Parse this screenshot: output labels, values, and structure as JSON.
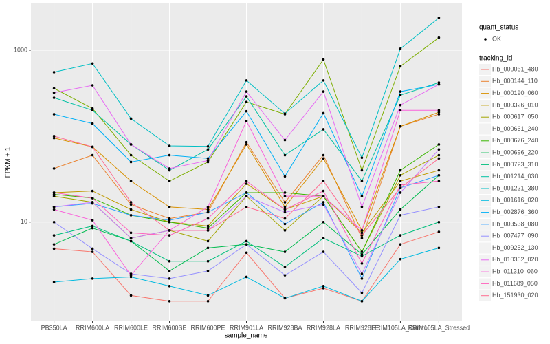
{
  "chart_data": {
    "type": "line",
    "x_label": "sample_name",
    "y_label": "FPKM + 1",
    "categories": [
      "PB350LA",
      "RRIM600LA",
      "RRIM600LE",
      "RRIM600SE",
      "RRIM600PE",
      "RRIM901LA",
      "RRIM928BA",
      "RRIM928LA",
      "RRIM928LE",
      "RRIM105LA_Control",
      "RRIM105LA_Stressed"
    ],
    "ylim": [
      0.7,
      3500
    ],
    "yticks": [
      10,
      1000
    ],
    "log_y": true,
    "grid": true,
    "point_legend": {
      "title": "quant_status",
      "labels": [
        "OK"
      ]
    },
    "legend_title": "tracking_id",
    "series": [
      {
        "name": "Hb_000061_480",
        "color": "#F8766D",
        "values": [
          4.9,
          4.5,
          1.4,
          1.2,
          1.2,
          4.4,
          1.3,
          1.7,
          1.2,
          5.5,
          7.7
        ]
      },
      {
        "name": "Hb_000144_110",
        "color": "#EA8331",
        "values": [
          42,
          60,
          16,
          11,
          13,
          85,
          17,
          60,
          6.5,
          130,
          180
        ]
      },
      {
        "name": "Hb_000190_060",
        "color": "#D89000",
        "values": [
          95,
          75,
          30,
          15,
          14,
          80,
          15,
          55,
          8,
          130,
          190
        ]
      },
      {
        "name": "Hb_000326_010",
        "color": "#C09B00",
        "values": [
          22,
          23,
          14,
          10,
          9,
          28,
          14,
          20,
          7.5,
          30,
          40
        ]
      },
      {
        "name": "Hb_000617_050",
        "color": "#A3A500",
        "values": [
          20,
          17,
          6.5,
          8,
          6,
          20,
          8,
          20,
          4.5,
          35,
          60
        ]
      },
      {
        "name": "Hb_000661_240",
        "color": "#7CAE00",
        "values": [
          360,
          210,
          60,
          30,
          50,
          250,
          180,
          780,
          40,
          650,
          1400
        ]
      },
      {
        "name": "Hb_000676_240",
        "color": "#39B600",
        "values": [
          21,
          19,
          12,
          10,
          8.5,
          22,
          22,
          20,
          4.5,
          40,
          80
        ]
      },
      {
        "name": "Hb_000696_220",
        "color": "#00BB4E",
        "values": [
          5.5,
          8.5,
          6,
          2.7,
          5,
          5.5,
          4.5,
          10,
          4.2,
          14,
          35
        ]
      },
      {
        "name": "Hb_000723_310",
        "color": "#00BF7D",
        "values": [
          7,
          9,
          6,
          3.5,
          3.5,
          6,
          3,
          6.5,
          4,
          7,
          10
        ]
      },
      {
        "name": "Hb_001214_030",
        "color": "#00C1A3",
        "values": [
          280,
          200,
          80,
          40,
          70,
          290,
          60,
          120,
          30,
          300,
          420
        ]
      },
      {
        "name": "Hb_001221_380",
        "color": "#00BFC4",
        "values": [
          555,
          700,
          160,
          77,
          76,
          445,
          183,
          445,
          56,
          1040,
          2380
        ]
      },
      {
        "name": "Hb_001616_020",
        "color": "#00BAE0",
        "values": [
          2,
          2.2,
          2.3,
          1.8,
          1.4,
          2.3,
          1.3,
          1.8,
          1.2,
          3.7,
          5
        ]
      },
      {
        "name": "Hb_002876_360",
        "color": "#00B0F6",
        "values": [
          180,
          140,
          50,
          60,
          55,
          195,
          34,
          185,
          20,
          330,
          400
        ]
      },
      {
        "name": "Hb_003538_080",
        "color": "#35A2FF",
        "values": [
          15,
          16.5,
          12,
          10.5,
          13,
          22,
          9.5,
          17,
          2.2,
          25,
          35
        ]
      },
      {
        "name": "Hb_007477_090",
        "color": "#9590FF",
        "values": [
          10,
          4.9,
          2.5,
          2.2,
          2.7,
          5.5,
          2.4,
          4.5,
          1.5,
          12,
          15
        ]
      },
      {
        "name": "Hb_009252_130",
        "color": "#C77CFF",
        "values": [
          15,
          17,
          6.5,
          8,
          8,
          20,
          13,
          16,
          2.5,
          22,
          70
        ]
      },
      {
        "name": "Hb_010362_020",
        "color": "#E76BF3",
        "values": [
          320,
          390,
          80,
          42,
          52,
          330,
          90,
          330,
          15,
          230,
          400
        ]
      },
      {
        "name": "Hb_011310_060",
        "color": "#FA62DB",
        "values": [
          14,
          10.5,
          2.4,
          8,
          15,
          150,
          20,
          20,
          8,
          200,
          200
        ]
      },
      {
        "name": "Hb_011689_050",
        "color": "#FF62BC",
        "values": [
          22,
          19,
          7.5,
          7,
          11,
          30,
          14,
          23,
          3.3,
          27,
          30
        ]
      },
      {
        "name": "Hb_151930_020",
        "color": "#FF6C91",
        "values": [
          100,
          75,
          17,
          8,
          8,
          15,
          11,
          30,
          7,
          25,
          55
        ]
      }
    ]
  }
}
